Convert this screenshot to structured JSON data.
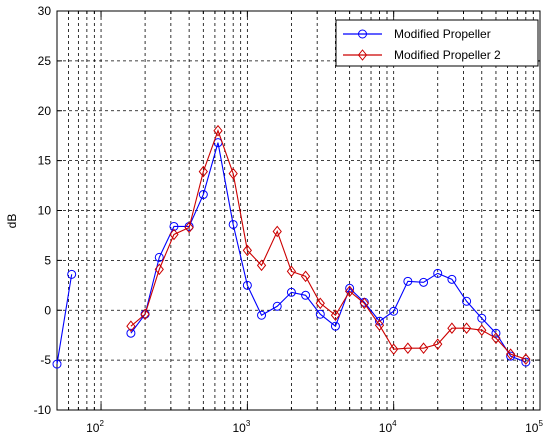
{
  "chart_data": {
    "type": "line",
    "x_scale": "log",
    "xlim": [
      50,
      100000
    ],
    "ylim": [
      -10,
      30
    ],
    "xlabel": "",
    "ylabel": "dB",
    "grid": true,
    "legend_position": "top-right",
    "y_ticks": [
      "-10",
      "-5",
      "0",
      "5",
      "10",
      "15",
      "20",
      "25",
      "30"
    ],
    "x_ticks": [
      {
        "base": "10",
        "exp": "2"
      },
      {
        "base": "10",
        "exp": "3"
      },
      {
        "base": "10",
        "exp": "4"
      },
      {
        "base": "10",
        "exp": "5"
      }
    ],
    "series": [
      {
        "name": "Modified Propeller",
        "color": "#0000ff",
        "marker": "circle",
        "points": [
          [
            50,
            -5.4
          ],
          [
            63,
            3.6
          ],
          null,
          [
            160,
            -2.3
          ],
          [
            200,
            -0.4
          ],
          [
            250,
            5.3
          ],
          [
            315,
            8.4
          ],
          [
            400,
            8.4
          ],
          [
            500,
            11.6
          ],
          [
            630,
            16.8
          ],
          [
            800,
            8.6
          ],
          [
            1000,
            2.5
          ],
          [
            1250,
            -0.5
          ],
          [
            1600,
            0.4
          ],
          [
            2000,
            1.8
          ],
          [
            2500,
            1.5
          ],
          [
            3150,
            -0.4
          ],
          [
            4000,
            -1.6
          ],
          [
            5000,
            2.2
          ],
          [
            6300,
            0.8
          ],
          [
            8000,
            -1.1
          ],
          [
            10000,
            -0.1
          ],
          [
            12500,
            2.9
          ],
          [
            16000,
            2.8
          ],
          [
            20000,
            3.7
          ],
          [
            25000,
            3.1
          ],
          [
            31500,
            0.9
          ],
          [
            40000,
            -0.8
          ],
          [
            50000,
            -2.3
          ],
          [
            63000,
            -4.6
          ],
          [
            80000,
            -5.2
          ]
        ]
      },
      {
        "name": "Modified Propeller 2",
        "color": "#cc0000",
        "marker": "diamond",
        "points": [
          [
            160,
            -1.6
          ],
          [
            200,
            -0.4
          ],
          [
            250,
            4.1
          ],
          [
            315,
            7.6
          ],
          [
            400,
            8.3
          ],
          [
            500,
            13.9
          ],
          [
            630,
            18.0
          ],
          [
            800,
            13.7
          ],
          [
            1000,
            6.0
          ],
          [
            1250,
            4.5
          ],
          [
            1600,
            7.9
          ],
          [
            2000,
            3.9
          ],
          [
            2500,
            3.4
          ],
          [
            3150,
            0.7
          ],
          [
            4000,
            -0.5
          ],
          [
            5000,
            1.9
          ],
          [
            6300,
            0.7
          ],
          [
            8000,
            -1.5
          ],
          [
            10000,
            -3.9
          ],
          [
            12500,
            -3.8
          ],
          [
            16000,
            -3.8
          ],
          [
            20000,
            -3.4
          ],
          [
            25000,
            -1.8
          ],
          [
            31500,
            -1.8
          ],
          [
            40000,
            -2.0
          ],
          [
            50000,
            -2.8
          ],
          [
            63000,
            -4.4
          ],
          [
            80000,
            -4.9
          ]
        ]
      }
    ]
  }
}
